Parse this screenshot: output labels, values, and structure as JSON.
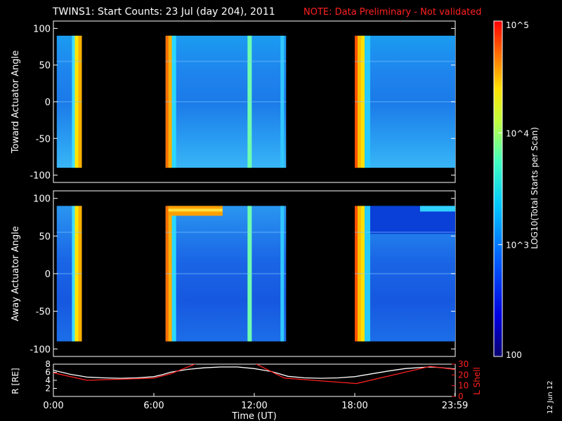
{
  "header": {
    "title": "TWINS1: Start Counts: 23 Jul (day 204), 2011",
    "note": "NOTE: Data Preliminary - Not validated"
  },
  "colorbar": {
    "label": "LOG10(Total Starts per Scan)",
    "ticks": [
      {
        "value": 100,
        "text": "100"
      },
      {
        "value": 1000,
        "text": "10^3"
      },
      {
        "value": 10000,
        "text": "10^4"
      },
      {
        "value": 100000,
        "text": "10^5"
      }
    ],
    "scale": "log",
    "range": [
      100,
      100000
    ]
  },
  "date_stamp": "12 Jun 12",
  "chart_data": [
    {
      "type": "heatmap",
      "ylabel": "Toward Actuator Angle",
      "ylim": [
        -110,
        110
      ],
      "yticks": [
        "100",
        "50",
        "0",
        "-50",
        "-100"
      ],
      "data_angle_range": [
        -90,
        90
      ],
      "data_time_blocks_hours": [
        [
          0.2,
          1.7
        ],
        [
          6.7,
          13.9
        ],
        [
          18.0,
          24.0
        ]
      ]
    },
    {
      "type": "heatmap",
      "ylabel": "Away Actuator Angle",
      "ylim": [
        -110,
        110
      ],
      "yticks": [
        "100",
        "50",
        "0",
        "-50",
        "-100"
      ],
      "data_angle_range": [
        -90,
        90
      ],
      "data_time_blocks_hours": [
        [
          0.2,
          1.7
        ],
        [
          6.7,
          13.9
        ],
        [
          18.0,
          24.0
        ]
      ]
    },
    {
      "type": "line",
      "ylabel_left": "R [RE]",
      "ylabel_right": "L Shell",
      "xlabel": "Time (UT)",
      "xlim_hours": [
        0,
        24
      ],
      "xticks": [
        "0:00",
        "6:00",
        "12:00",
        "18:00",
        "23:59"
      ],
      "yticks_left": [
        "8",
        "6",
        "4",
        "2"
      ],
      "yticks_right": [
        "30",
        "20",
        "10",
        "0"
      ],
      "ylim_left": [
        0,
        8
      ],
      "ylim_right": [
        0,
        30
      ],
      "series": [
        {
          "axis": "left",
          "color": "#ffffff",
          "x": [
            0,
            1,
            2,
            3,
            4,
            5,
            6,
            6.5,
            7,
            8,
            9,
            10,
            11,
            12,
            13,
            13.5,
            14,
            15,
            16,
            17,
            18,
            19,
            20,
            21,
            22,
            22.5,
            23,
            24
          ],
          "y": [
            6.5,
            5.5,
            4.8,
            4.6,
            4.5,
            4.6,
            4.9,
            5.4,
            6.0,
            6.7,
            7.1,
            7.3,
            7.3,
            6.9,
            6.2,
            5.6,
            5.0,
            4.6,
            4.5,
            4.6,
            4.9,
            5.6,
            6.3,
            6.9,
            7.2,
            7.3,
            7.2,
            6.8
          ]
        },
        {
          "axis": "right",
          "color": "#ff2020",
          "x": [
            0,
            2,
            6,
            7,
            8.6,
            12,
            13.8,
            18.1,
            22.5,
            24
          ],
          "y": [
            22,
            15,
            17,
            21,
            31,
            31,
            17,
            12,
            28,
            25
          ]
        }
      ]
    }
  ]
}
